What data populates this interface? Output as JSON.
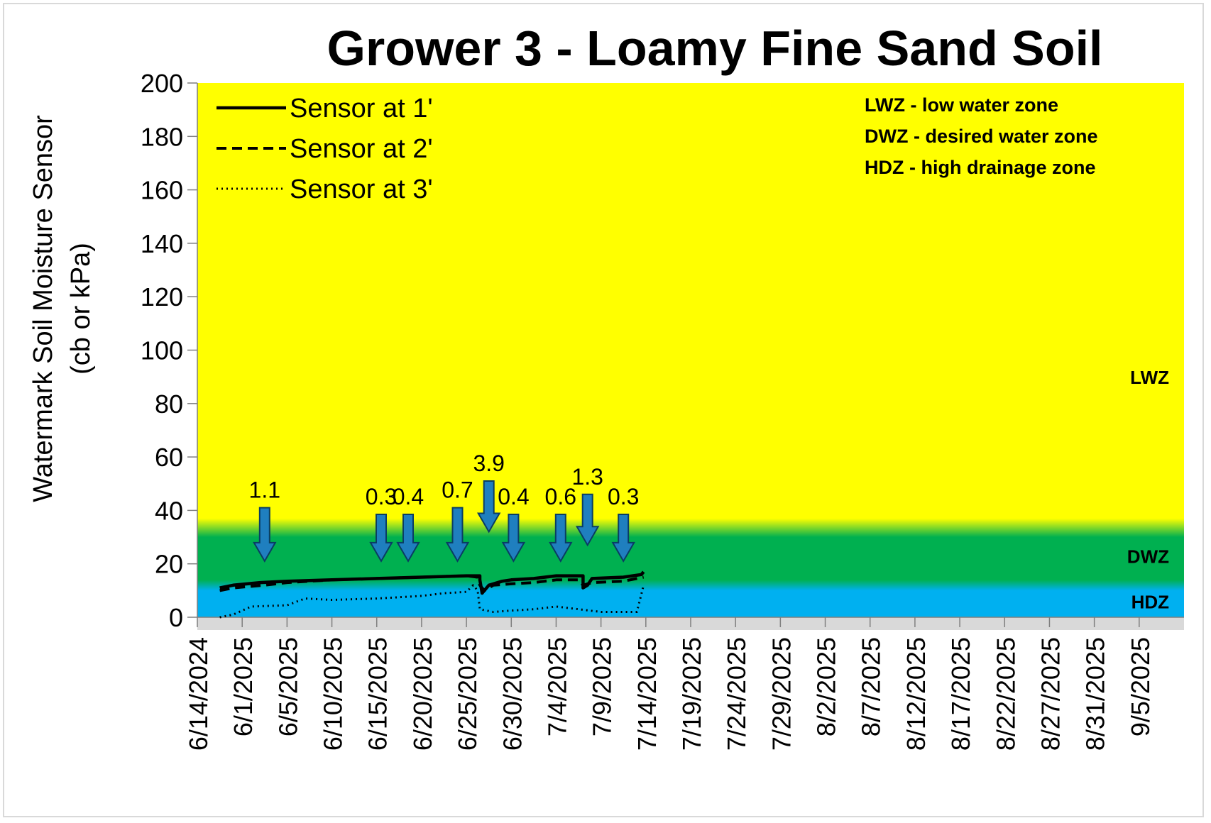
{
  "chart_data": {
    "type": "line",
    "title": "Grower 3 - Loamy Fine Sand Soil",
    "xlabel": "",
    "ylabel_line1": "Watermark Soil Moisture Sensor",
    "ylabel_line2": "(cb or kPa)",
    "ylim": [
      0,
      200
    ],
    "yticks": [
      0,
      20,
      40,
      60,
      80,
      100,
      120,
      140,
      160,
      180,
      200
    ],
    "xticks": [
      "6/14/2024",
      "6/1/2025",
      "6/5/2025",
      "6/10/2025",
      "6/15/2025",
      "6/20/2025",
      "6/25/2025",
      "6/30/2025",
      "7/4/2025",
      "7/9/2025",
      "7/14/2025",
      "7/19/2025",
      "7/24/2025",
      "7/29/2025",
      "8/2/2025",
      "8/7/2025",
      "8/12/2025",
      "8/17/2025",
      "8/22/2025",
      "8/27/2025",
      "8/31/2025",
      "9/5/2025"
    ],
    "grid": false,
    "legend_position": "top-left",
    "zones": [
      {
        "name": "LWZ",
        "description": "LWZ  - low water zone",
        "from": 35,
        "to": 200,
        "color": "#ffff00"
      },
      {
        "name": "DWZ",
        "description": "DWZ - desired water zone",
        "from": 12,
        "to": 35,
        "color": "#00b050"
      },
      {
        "name": "HDZ",
        "description": "HDZ - high drainage zone",
        "from": 0,
        "to": 12,
        "color": "#00b0f0"
      }
    ],
    "series": [
      {
        "name": "Sensor at 1'",
        "style": "solid",
        "points": [
          [
            0.5,
            11
          ],
          [
            0.8,
            12
          ],
          [
            1.4,
            13
          ],
          [
            2,
            13.5
          ],
          [
            3,
            14
          ],
          [
            4,
            14.5
          ],
          [
            5,
            15
          ],
          [
            6,
            15.5
          ],
          [
            6.3,
            15.5
          ],
          [
            6.3,
            14
          ],
          [
            6.35,
            9
          ],
          [
            6.5,
            12
          ],
          [
            6.8,
            13.5
          ],
          [
            7,
            14
          ],
          [
            7.5,
            14.5
          ],
          [
            8,
            15.5
          ],
          [
            8.6,
            15.5
          ],
          [
            8.6,
            11
          ],
          [
            8.7,
            12
          ],
          [
            8.8,
            14.5
          ],
          [
            9.5,
            15
          ],
          [
            9.9,
            16
          ],
          [
            9.95,
            17
          ]
        ]
      },
      {
        "name": "Sensor at 2'",
        "style": "dashed",
        "points": [
          [
            0.5,
            10
          ],
          [
            0.8,
            11
          ],
          [
            1.5,
            12
          ],
          [
            2,
            13
          ],
          [
            3,
            14
          ],
          [
            4,
            14.5
          ],
          [
            5,
            15
          ],
          [
            6,
            15.5
          ],
          [
            6.25,
            15
          ],
          [
            6.3,
            12
          ],
          [
            6.4,
            10
          ],
          [
            6.6,
            12
          ],
          [
            7,
            12.5
          ],
          [
            7.5,
            13
          ],
          [
            8,
            14
          ],
          [
            8.5,
            14
          ],
          [
            8.6,
            12
          ],
          [
            8.8,
            13
          ],
          [
            9.5,
            13.5
          ],
          [
            9.95,
            15
          ]
        ]
      },
      {
        "name": "Sensor at 3'",
        "style": "dotted",
        "points": [
          [
            0.5,
            0
          ],
          [
            0.8,
            1
          ],
          [
            1.2,
            4
          ],
          [
            2,
            4.5
          ],
          [
            2.4,
            7
          ],
          [
            3,
            6.5
          ],
          [
            4,
            7
          ],
          [
            5,
            8
          ],
          [
            5.5,
            9
          ],
          [
            6,
            9.5
          ],
          [
            6.15,
            12
          ],
          [
            6.25,
            10
          ],
          [
            6.3,
            3
          ],
          [
            6.6,
            2
          ],
          [
            7,
            2.5
          ],
          [
            7.5,
            3
          ],
          [
            8,
            4
          ],
          [
            8.5,
            3
          ],
          [
            9,
            2
          ],
          [
            9.8,
            2
          ],
          [
            9.95,
            12
          ]
        ]
      }
    ],
    "irrigation_events": [
      {
        "label": "1.1",
        "x": 1.5
      },
      {
        "label": "0.3",
        "x": 4.1
      },
      {
        "label": "0.4",
        "x": 4.7
      },
      {
        "label": "0.7",
        "x": 5.8
      },
      {
        "label": "3.9",
        "x": 6.5
      },
      {
        "label": "0.4",
        "x": 7.05
      },
      {
        "label": "0.6",
        "x": 8.1
      },
      {
        "label": "1.3",
        "x": 8.7
      },
      {
        "label": "0.3",
        "x": 9.5
      }
    ]
  },
  "colors": {
    "arrow_fill": "#1f7fbf",
    "arrow_stroke": "#0a3d62",
    "floor": "#d9d9d9"
  }
}
